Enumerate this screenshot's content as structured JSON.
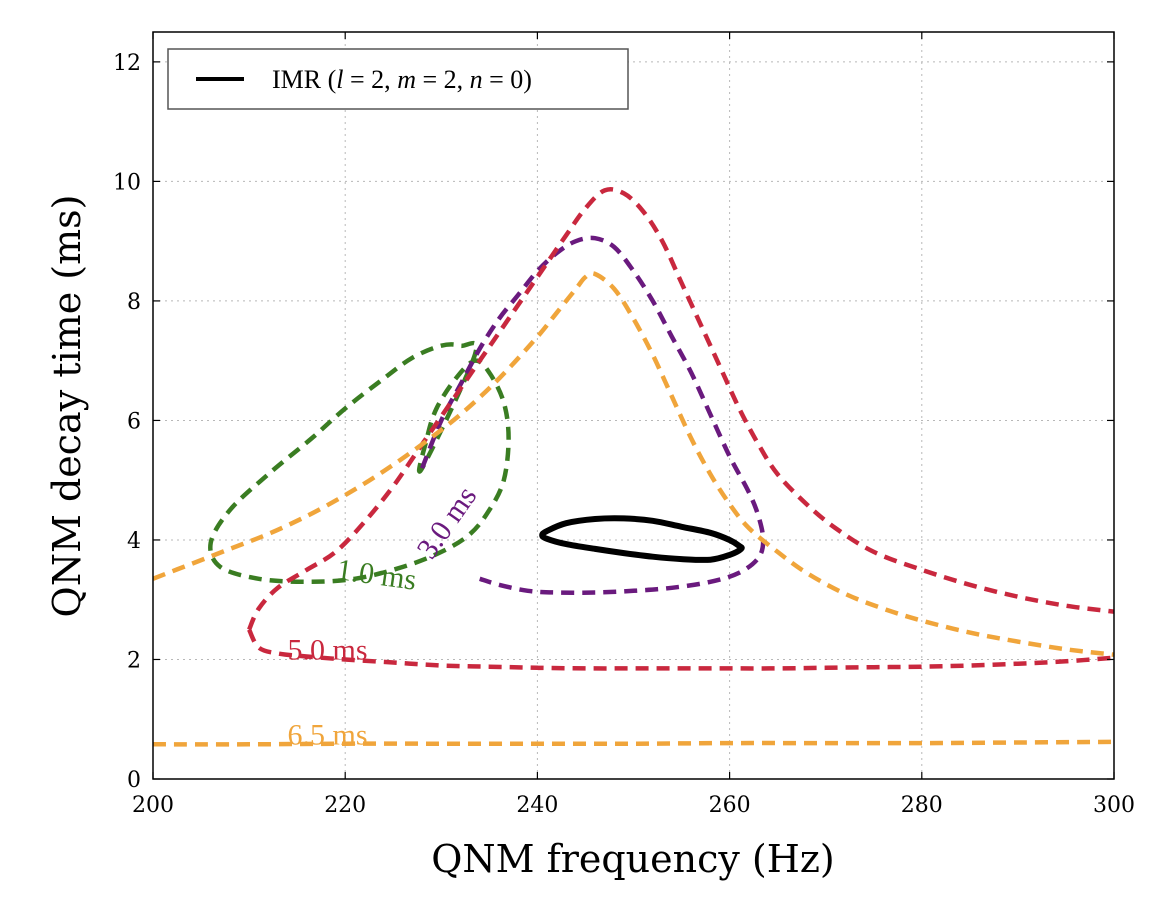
{
  "chart_data": {
    "type": "line",
    "xlabel": "QNM frequency (Hz)",
    "ylabel": "QNM decay time (ms)",
    "xlim": [
      200,
      300
    ],
    "ylim": [
      0,
      12.5
    ],
    "xticks": [
      "200",
      "220",
      "240",
      "260",
      "280",
      "300"
    ],
    "yticks": [
      "0",
      "2",
      "4",
      "6",
      "8",
      "10",
      "12"
    ],
    "grid": true,
    "legend": {
      "placement": "top-left",
      "entries": [
        {
          "label_main": "IMR (",
          "l_sym": "l",
          "l_val": " = 2, ",
          "m_sym": "m",
          "m_val": " = 2, ",
          "n_sym": "n",
          "n_val": " = 0)",
          "color": "#000000"
        }
      ]
    },
    "series": [
      {
        "name": "1.0 ms",
        "color": "#3a7d22",
        "dashed": true,
        "closed": true,
        "label": {
          "text": "1.0 ms",
          "x": 219,
          "y": 3.35,
          "angle": -8
        },
        "points": [
          [
            228,
            5.2
          ],
          [
            228.5,
            5.7
          ],
          [
            229.5,
            6.2
          ],
          [
            231.5,
            6.7
          ],
          [
            233.5,
            7.0
          ],
          [
            235,
            6.8
          ],
          [
            236.5,
            6.3
          ],
          [
            237,
            5.7
          ],
          [
            236.5,
            5.0
          ],
          [
            235,
            4.5
          ],
          [
            233,
            4.1
          ],
          [
            230,
            3.8
          ],
          [
            226,
            3.55
          ],
          [
            221,
            3.35
          ],
          [
            216,
            3.3
          ],
          [
            211,
            3.35
          ],
          [
            207,
            3.55
          ],
          [
            206,
            3.95
          ],
          [
            208,
            4.5
          ],
          [
            212,
            5.1
          ],
          [
            216.5,
            5.7
          ],
          [
            220,
            6.2
          ],
          [
            224,
            6.7
          ],
          [
            227,
            7.05
          ],
          [
            230,
            7.25
          ],
          [
            232,
            7.25
          ],
          [
            233.5,
            7.1
          ]
        ]
      },
      {
        "name": "3.0 ms",
        "color": "#6a1a7e",
        "dashed": true,
        "closed": false,
        "label": {
          "text": "3.0 ms",
          "x": 229,
          "y": 3.65,
          "angle": 55
        },
        "points": [
          [
            228,
            5.2
          ],
          [
            230,
            6.0
          ],
          [
            232,
            6.6
          ],
          [
            234,
            7.2
          ],
          [
            236,
            7.7
          ],
          [
            238,
            8.1
          ],
          [
            240,
            8.5
          ],
          [
            242,
            8.8
          ],
          [
            244,
            9.0
          ],
          [
            246,
            9.05
          ],
          [
            248,
            8.9
          ],
          [
            250,
            8.5
          ],
          [
            252,
            8.0
          ],
          [
            254,
            7.4
          ],
          [
            256,
            6.8
          ],
          [
            258,
            6.1
          ],
          [
            260,
            5.4
          ],
          [
            262,
            4.8
          ],
          [
            263,
            4.4
          ],
          [
            263.5,
            4.0
          ],
          [
            263,
            3.7
          ],
          [
            261,
            3.45
          ],
          [
            258,
            3.3
          ],
          [
            254,
            3.2
          ],
          [
            250,
            3.15
          ],
          [
            246,
            3.12
          ],
          [
            242,
            3.12
          ],
          [
            239,
            3.15
          ],
          [
            236,
            3.25
          ],
          [
            234,
            3.35
          ]
        ]
      },
      {
        "name": "5.0 ms",
        "color": "#c9283e",
        "dashed": true,
        "closed": false,
        "label": {
          "text": "5.0 ms",
          "x": 214,
          "y": 2.0,
          "angle": 0
        },
        "points": [
          [
            210,
            2.5
          ],
          [
            211,
            2.85
          ],
          [
            213,
            3.2
          ],
          [
            216,
            3.5
          ],
          [
            219,
            3.8
          ],
          [
            222,
            4.3
          ],
          [
            225,
            4.9
          ],
          [
            228,
            5.6
          ],
          [
            231,
            6.3
          ],
          [
            234,
            7.0
          ],
          [
            237,
            7.7
          ],
          [
            240,
            8.4
          ],
          [
            243,
            9.1
          ],
          [
            245,
            9.55
          ],
          [
            247,
            9.85
          ],
          [
            249,
            9.8
          ],
          [
            251,
            9.5
          ],
          [
            253,
            9.0
          ],
          [
            255,
            8.3
          ],
          [
            257,
            7.6
          ],
          [
            259,
            6.9
          ],
          [
            261,
            6.2
          ],
          [
            263,
            5.6
          ],
          [
            265,
            5.1
          ],
          [
            268,
            4.6
          ],
          [
            271,
            4.2
          ],
          [
            275,
            3.8
          ],
          [
            280,
            3.5
          ],
          [
            285,
            3.25
          ],
          [
            290,
            3.05
          ],
          [
            295,
            2.9
          ],
          [
            300,
            2.8
          ]
        ],
        "points2": [
          [
            210,
            2.5
          ],
          [
            211,
            2.2
          ],
          [
            213,
            2.1
          ],
          [
            216,
            2.05
          ],
          [
            220,
            2.0
          ],
          [
            225,
            1.95
          ],
          [
            230,
            1.9
          ],
          [
            235,
            1.88
          ],
          [
            240,
            1.86
          ],
          [
            245,
            1.85
          ],
          [
            250,
            1.85
          ],
          [
            255,
            1.85
          ],
          [
            260,
            1.85
          ],
          [
            265,
            1.85
          ],
          [
            270,
            1.86
          ],
          [
            275,
            1.87
          ],
          [
            280,
            1.88
          ],
          [
            285,
            1.9
          ],
          [
            290,
            1.93
          ],
          [
            295,
            1.97
          ],
          [
            300,
            2.03
          ]
        ]
      },
      {
        "name": "6.5 ms",
        "color": "#f0a53b",
        "dashed": true,
        "closed": false,
        "label": {
          "text": "6.5 ms",
          "x": 214,
          "y": 0.58,
          "angle": 0
        },
        "points": [
          [
            200,
            3.35
          ],
          [
            204,
            3.6
          ],
          [
            208,
            3.85
          ],
          [
            212,
            4.1
          ],
          [
            216,
            4.4
          ],
          [
            220,
            4.75
          ],
          [
            224,
            5.15
          ],
          [
            228,
            5.6
          ],
          [
            232,
            6.1
          ],
          [
            236,
            6.7
          ],
          [
            240,
            7.4
          ],
          [
            242,
            7.8
          ],
          [
            244,
            8.2
          ],
          [
            245,
            8.4
          ],
          [
            246,
            8.45
          ],
          [
            248,
            8.2
          ],
          [
            250,
            7.7
          ],
          [
            252,
            7.1
          ],
          [
            254,
            6.4
          ],
          [
            256,
            5.7
          ],
          [
            258,
            5.1
          ],
          [
            260,
            4.6
          ],
          [
            262,
            4.2
          ],
          [
            265,
            3.8
          ],
          [
            268,
            3.45
          ],
          [
            272,
            3.1
          ],
          [
            276,
            2.85
          ],
          [
            280,
            2.65
          ],
          [
            285,
            2.45
          ],
          [
            290,
            2.3
          ],
          [
            295,
            2.17
          ],
          [
            300,
            2.08
          ]
        ],
        "points2": [
          [
            200,
            0.58
          ],
          [
            210,
            0.58
          ],
          [
            220,
            0.59
          ],
          [
            230,
            0.59
          ],
          [
            240,
            0.59
          ],
          [
            250,
            0.59
          ],
          [
            260,
            0.6
          ],
          [
            270,
            0.6
          ],
          [
            280,
            0.6
          ],
          [
            290,
            0.61
          ],
          [
            300,
            0.62
          ]
        ]
      },
      {
        "name": "IMR (l = 2, m = 2, n = 0)",
        "color": "#000000",
        "dashed": false,
        "closed": true,
        "points": [
          [
            241,
            4.15
          ],
          [
            243,
            4.28
          ],
          [
            246,
            4.35
          ],
          [
            249,
            4.36
          ],
          [
            252,
            4.32
          ],
          [
            255,
            4.22
          ],
          [
            258,
            4.12
          ],
          [
            260,
            4.0
          ],
          [
            261,
            3.9
          ],
          [
            261.2,
            3.85
          ],
          [
            260,
            3.75
          ],
          [
            258,
            3.67
          ],
          [
            255,
            3.68
          ],
          [
            252,
            3.72
          ],
          [
            249,
            3.78
          ],
          [
            246,
            3.85
          ],
          [
            243,
            3.93
          ],
          [
            241,
            4.02
          ],
          [
            240.5,
            4.08
          ]
        ]
      }
    ]
  }
}
